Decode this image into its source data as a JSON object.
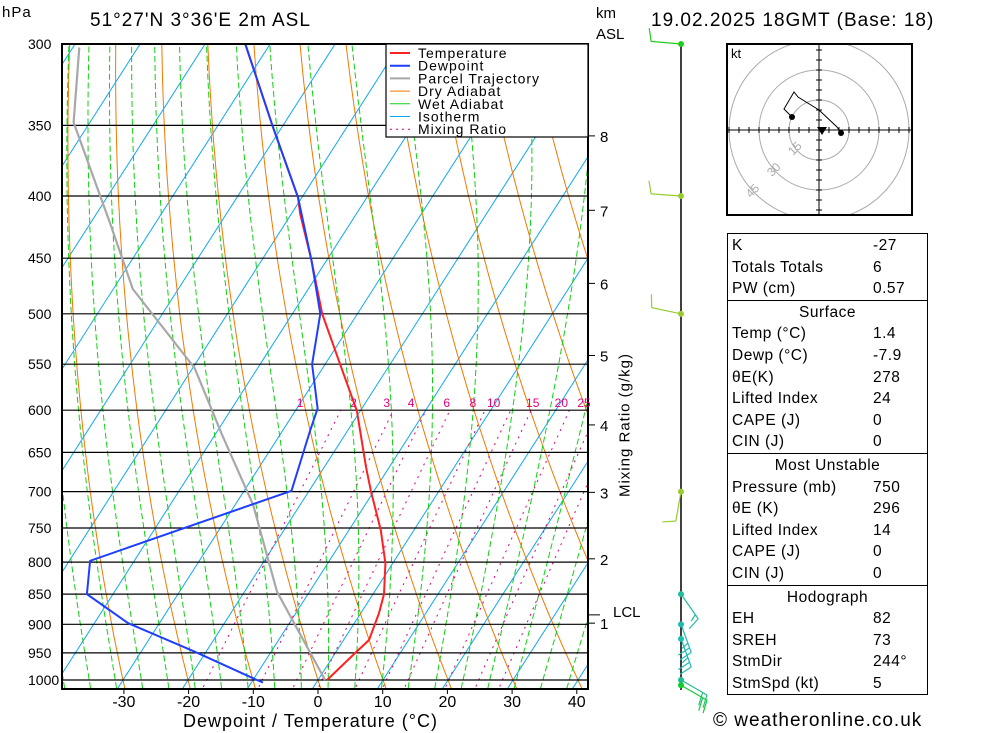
{
  "header": {
    "hpa_label": "hPa",
    "location": "51°27'N 3°36'E 2m ASL",
    "km_label": "km",
    "asl_label": "ASL",
    "datetime": "19.02.2025 18GMT (Base: 18)"
  },
  "footer": {
    "copyright": "© weatheronline.co.uk"
  },
  "colors": {
    "temperature": "#ff2020",
    "dewpoint": "#1f3fff",
    "parcel": "#a8a8a8",
    "dry_adiabat": "#f07800",
    "wet_adiabat": "#10d010",
    "isotherm": "#10a8f0",
    "mixing_ratio": "#e0007f"
  },
  "chart_data": {
    "type": "skew-t",
    "title": "51°27'N 3°36'E 2m ASL",
    "xlabel": "Dewpoint / Temperature (°C)",
    "ylabel": "hPa",
    "right_label": "Mixing Ratio (g/kg)",
    "xlim": [
      -40,
      40
    ],
    "ylim": [
      1000,
      300
    ],
    "x_ticks": [
      -30,
      -20,
      -10,
      0,
      10,
      20,
      30,
      40
    ],
    "pressure_ticks": [
      300,
      350,
      400,
      450,
      500,
      550,
      600,
      650,
      700,
      750,
      800,
      850,
      900,
      950,
      1000
    ],
    "height_ticks_km": [
      {
        "label": "8",
        "p": 357
      },
      {
        "label": "7",
        "p": 411
      },
      {
        "label": "6",
        "p": 472
      },
      {
        "label": "5",
        "p": 541
      },
      {
        "label": "4",
        "p": 617
      },
      {
        "label": "3",
        "p": 701
      },
      {
        "label": "2",
        "p": 795
      },
      {
        "label": "1",
        "p": 898
      }
    ],
    "lcl": {
      "label": "LCL",
      "p": 884
    },
    "legend": [
      "Temperature",
      "Dewpoint",
      "Parcel Trajectory",
      "Dry Adiabat",
      "Wet Adiabat",
      "Isotherm",
      "Mixing Ratio"
    ],
    "legend_position": "top-right",
    "mixing_ratio_labels": [
      1,
      2,
      3,
      4,
      6,
      8,
      10,
      15,
      20,
      25
    ],
    "temperature": {
      "p": [
        1000,
        952,
        927,
        881,
        850,
        802,
        753,
        700,
        668,
        601,
        550,
        500,
        452,
        414,
        401,
        351,
        300
      ],
      "t": [
        1.4,
        3.0,
        3.9,
        2.8,
        1.7,
        -1.1,
        -5.1,
        -10.4,
        -13.6,
        -20.5,
        -27.7,
        -35.4,
        -42.3,
        -48.6,
        -50.6,
        -61.4,
        -73.8
      ]
    },
    "dewpoint": {
      "p": [
        1005,
        1000,
        948,
        898,
        850,
        798,
        699,
        623,
        598,
        550,
        500,
        452,
        401,
        351,
        300
      ],
      "t": [
        -8.2,
        -9.4,
        -21.7,
        -34.8,
        -44.0,
        -46.8,
        -22.7,
        -25.8,
        -26.8,
        -32.0,
        -35.7,
        -42.3,
        -50.6,
        -61.4,
        -73.8
      ]
    },
    "parcel": {
      "p": [
        1000,
        846,
        718,
        628,
        554,
        477,
        421,
        348,
        302
      ],
      "t": [
        1.1,
        -15.0,
        -27.2,
        -39.0,
        -49.7,
        -67.0,
        -77.0,
        -92.5,
        -99.0
      ]
    },
    "winds": [
      {
        "p": 300,
        "dir": 275,
        "spd_kt": 10,
        "color": "#20cc20"
      },
      {
        "p": 400,
        "dir": 274,
        "spd_kt": 10,
        "color": "#99cc33"
      },
      {
        "p": 500,
        "dir": 282,
        "spd_kt": 10,
        "color": "#99cc33"
      },
      {
        "p": 700,
        "dir": 190,
        "spd_kt": 10,
        "color": "#99cc33"
      },
      {
        "p": 850,
        "dir": 145,
        "spd_kt": 15,
        "color": "#20bba0"
      },
      {
        "p": 900,
        "dir": 160,
        "spd_kt": 25,
        "color": "#20bbb0"
      },
      {
        "p": 925,
        "dir": 160,
        "spd_kt": 25,
        "color": "#20bbb0"
      },
      {
        "p": 1000,
        "dir": 120,
        "spd_kt": 20,
        "color": "#20bb90"
      },
      {
        "p": 1010,
        "dir": 120,
        "spd_kt": 20,
        "color": "#10cc30"
      }
    ],
    "hodograph": {
      "unit_label": "kt",
      "rings_kt": [
        15,
        30,
        45
      ],
      "u": [
        11,
        9,
        0,
        -10.5,
        -12.5,
        -17.5,
        -13.5
      ],
      "v": [
        -1.5,
        1.5,
        10,
        16.5,
        19,
        10.5,
        6.5
      ],
      "storm_motion": {
        "u": 1.5,
        "v": 0
      }
    }
  },
  "indices": {
    "top": [
      {
        "label": "K",
        "value": "-27"
      },
      {
        "label": "Totals Totals",
        "value": "6"
      },
      {
        "label": "PW (cm)",
        "value": "0.57"
      }
    ],
    "surface": {
      "title": "Surface",
      "rows": [
        {
          "label": "Temp (°C)",
          "value": "1.4"
        },
        {
          "label": "Dewp (°C)",
          "value": "-7.9"
        },
        {
          "label": "θE(K)",
          "value": "278"
        },
        {
          "label": "Lifted Index",
          "value": "24"
        },
        {
          "label": "CAPE (J)",
          "value": "0"
        },
        {
          "label": "CIN (J)",
          "value": "0"
        }
      ]
    },
    "most_unstable": {
      "title": "Most Unstable",
      "rows": [
        {
          "label": "Pressure (mb)",
          "value": "750"
        },
        {
          "label": "θE (K)",
          "value": "296"
        },
        {
          "label": "Lifted Index",
          "value": "14"
        },
        {
          "label": "CAPE (J)",
          "value": "0"
        },
        {
          "label": "CIN (J)",
          "value": "0"
        }
      ]
    },
    "hodograph": {
      "title": "Hodograph",
      "rows": [
        {
          "label": "EH",
          "value": "82"
        },
        {
          "label": "SREH",
          "value": "73"
        },
        {
          "label": "StmDir",
          "value": "244°"
        },
        {
          "label": "StmSpd (kt)",
          "value": "5"
        }
      ]
    }
  }
}
